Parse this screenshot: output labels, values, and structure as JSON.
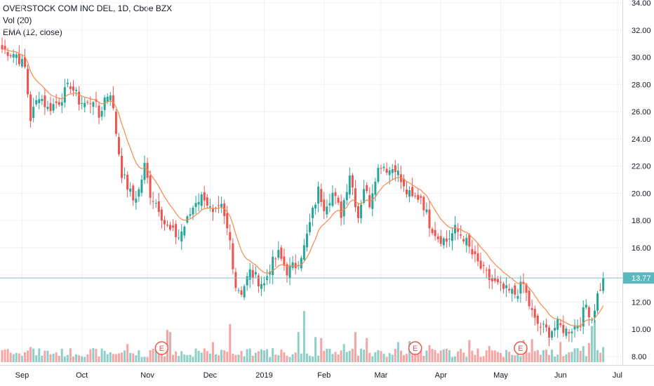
{
  "legend": {
    "title": "OVERSTOCK COM INC DEL, 1D, Cboe BZX",
    "vol": "Vol (20)",
    "ema": "EMA (12, close)"
  },
  "colors": {
    "up": "#26a69a",
    "down": "#ef5350",
    "up_vol": "#8fcfc8",
    "down_vol": "#f5a5a3",
    "ema": "#f7894a",
    "price_line": "#7fc5c9",
    "price_badge": "#5cb8bf",
    "grid": "#eef0f3",
    "axis": "#d6d8de",
    "earnings": "#ef5350"
  },
  "chart_data": {
    "type": "candlestick",
    "title": "OVERSTOCK COM INC DEL, 1D, Cboe BZX",
    "ylim": [
      8,
      34
    ],
    "y_ticks": [
      "8.00",
      "10.00",
      "12.00",
      "14.00",
      "16.00",
      "18.00",
      "20.00",
      "22.00",
      "24.00",
      "26.00",
      "28.00",
      "30.00",
      "32.00",
      "34.00"
    ],
    "x_labels": [
      "Sep",
      "Oct",
      "Nov",
      "Dec",
      "2019",
      "Feb",
      "Mar",
      "Apr",
      "May",
      "Jun",
      "Jul"
    ],
    "x_label_index": [
      7,
      28,
      51,
      73,
      92,
      113,
      133,
      154,
      175,
      196,
      216
    ],
    "n_bars": 212,
    "current_price": "13.77",
    "earnings_marker": "E",
    "earnings_index": [
      56,
      145,
      182
    ],
    "close_anchors": [
      [
        0,
        30.6
      ],
      [
        5,
        30.2
      ],
      [
        8,
        29.2
      ],
      [
        10,
        25.5
      ],
      [
        13,
        27.3
      ],
      [
        16,
        26.2
      ],
      [
        20,
        26.8
      ],
      [
        24,
        28.0
      ],
      [
        27,
        26.8
      ],
      [
        30,
        26.5
      ],
      [
        32,
        27.0
      ],
      [
        34,
        25.6
      ],
      [
        36,
        27.0
      ],
      [
        38,
        27.5
      ],
      [
        40,
        24.5
      ],
      [
        42,
        21.5
      ],
      [
        44,
        20.5
      ],
      [
        46,
        19.5
      ],
      [
        48,
        20.2
      ],
      [
        50,
        22.0
      ],
      [
        52,
        20.0
      ],
      [
        55,
        19.0
      ],
      [
        57,
        17.8
      ],
      [
        59,
        17.2
      ],
      [
        62,
        16.8
      ],
      [
        65,
        18.0
      ],
      [
        68,
        19.5
      ],
      [
        71,
        19.8
      ],
      [
        74,
        18.3
      ],
      [
        77,
        18.9
      ],
      [
        80,
        16.5
      ],
      [
        82,
        13.2
      ],
      [
        84,
        12.8
      ],
      [
        87,
        14.2
      ],
      [
        90,
        13.6
      ],
      [
        92,
        13.3
      ],
      [
        94,
        14.6
      ],
      [
        97,
        15.5
      ],
      [
        100,
        14.3
      ],
      [
        103,
        14.7
      ],
      [
        106,
        16.0
      ],
      [
        109,
        18.6
      ],
      [
        111,
        20.2
      ],
      [
        113,
        19.1
      ],
      [
        116,
        20.0
      ],
      [
        119,
        18.5
      ],
      [
        122,
        21.5
      ],
      [
        125,
        18.3
      ],
      [
        127,
        20.5
      ],
      [
        129,
        19.3
      ],
      [
        131,
        21.3
      ],
      [
        133,
        22.2
      ],
      [
        136,
        21.7
      ],
      [
        138,
        22.0
      ],
      [
        141,
        20.3
      ],
      [
        144,
        19.6
      ],
      [
        147,
        19.8
      ],
      [
        150,
        17.8
      ],
      [
        153,
        16.8
      ],
      [
        156,
        16.5
      ],
      [
        159,
        17.3
      ],
      [
        162,
        16.8
      ],
      [
        165,
        15.5
      ],
      [
        168,
        14.5
      ],
      [
        171,
        13.7
      ],
      [
        174,
        13.2
      ],
      [
        177,
        12.8
      ],
      [
        180,
        12.6
      ],
      [
        183,
        13.3
      ],
      [
        185,
        11.8
      ],
      [
        187,
        10.6
      ],
      [
        189,
        10.2
      ],
      [
        192,
        9.8
      ],
      [
        195,
        10.3
      ],
      [
        198,
        9.9
      ],
      [
        201,
        10.2
      ],
      [
        203,
        10.6
      ],
      [
        205,
        11.8
      ],
      [
        207,
        10.8
      ],
      [
        209,
        12.5
      ],
      [
        211,
        13.77
      ]
    ],
    "volume_spikes": [
      [
        0,
        1.2
      ],
      [
        10,
        1.5
      ],
      [
        44,
        1.8
      ],
      [
        58,
        3.2
      ],
      [
        59,
        3.0
      ],
      [
        74,
        2.0
      ],
      [
        80,
        3.8
      ],
      [
        86,
        1.3
      ],
      [
        104,
        3.0
      ],
      [
        106,
        5.1
      ],
      [
        110,
        2.5
      ],
      [
        112,
        2.4
      ],
      [
        120,
        1.8
      ],
      [
        124,
        3.0
      ],
      [
        128,
        2.4
      ],
      [
        139,
        2.0
      ],
      [
        143,
        2.1
      ],
      [
        150,
        1.7
      ],
      [
        164,
        2.2
      ],
      [
        171,
        1.6
      ],
      [
        183,
        2.2
      ],
      [
        186,
        2.3
      ],
      [
        196,
        2.0
      ],
      [
        204,
        1.6
      ],
      [
        206,
        1.9
      ],
      [
        207,
        3.6
      ],
      [
        208,
        4.2
      ],
      [
        211,
        1.5
      ]
    ]
  }
}
